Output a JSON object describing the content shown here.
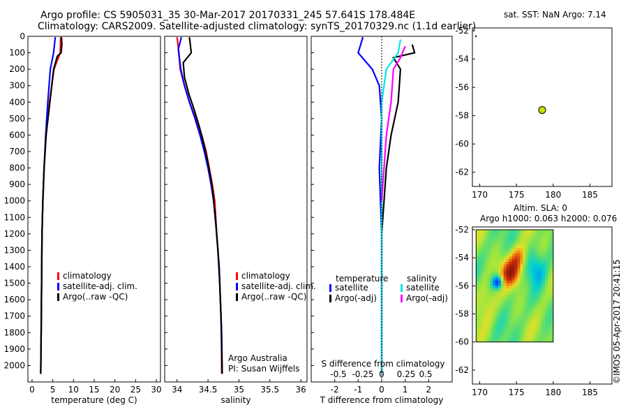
{
  "title_line1": "Argo profile: CS 5905031_35 30-Mar-2017 20170331_245 57.641S 178.484E",
  "title_line2": "Climatology: CARS2009. Satellite-adjusted climatology: synTS_20170329.nc (1.1d earlier)",
  "map_title_top": "sat. SST: NaN Argo: 7.14",
  "map_title_bottom_1": "Altim. SLA: 0",
  "map_title_bottom_2": "Argo h1000: 0.063 h2000: 0.076",
  "side_stamp": "©IMOS 05-Apr-2017 20:41:15",
  "colors": {
    "climatology": "#ff0000",
    "satellite": "#0000ff",
    "argo": "#000000",
    "sat_salinity": "#00e5e5",
    "argo_salinity": "#ff00ff",
    "float_marker": "#c8e000"
  },
  "chart_data": [
    {
      "type": "line",
      "xlabel": "temperature (deg C)",
      "ylabel": "",
      "xlim": [
        -1,
        31
      ],
      "ylim": [
        2100,
        0
      ],
      "xticks": [
        0,
        5,
        10,
        15,
        20,
        25,
        30
      ],
      "yticks": [
        0,
        100,
        200,
        300,
        400,
        500,
        600,
        700,
        800,
        900,
        1000,
        1100,
        1200,
        1300,
        1400,
        1500,
        1600,
        1700,
        1800,
        1900,
        2000
      ],
      "legend": [
        "climatology",
        "satellite-adj. clim.",
        "Argo(..raw -QC)"
      ],
      "series": [
        {
          "name": "climatology",
          "color": "#ff0000",
          "points": [
            [
              6.9,
              5
            ],
            [
              6.8,
              100
            ],
            [
              5.3,
              200
            ],
            [
              4.2,
              400
            ],
            [
              3.4,
              600
            ],
            [
              2.9,
              800
            ],
            [
              2.6,
              1000
            ],
            [
              2.4,
              1200
            ],
            [
              2.3,
              1500
            ],
            [
              2.2,
              1800
            ],
            [
              2.1,
              2050
            ]
          ]
        },
        {
          "name": "satellite-adj. clim.",
          "color": "#0000ff",
          "points": [
            [
              5.6,
              5
            ],
            [
              5.2,
              100
            ],
            [
              4.4,
              200
            ],
            [
              3.8,
              400
            ],
            [
              3.3,
              600
            ],
            [
              2.9,
              800
            ],
            [
              2.6,
              1000
            ],
            [
              2.4,
              1200
            ],
            [
              2.3,
              1500
            ],
            [
              2.2,
              1800
            ],
            [
              2.1,
              2050
            ]
          ]
        },
        {
          "name": "Argo(..raw -QC)",
          "color": "#000000",
          "points": [
            [
              7.1,
              5
            ],
            [
              7.2,
              50
            ],
            [
              7.0,
              100
            ],
            [
              6.1,
              120
            ],
            [
              5.2,
              200
            ],
            [
              4.3,
              400
            ],
            [
              3.4,
              600
            ],
            [
              2.9,
              800
            ],
            [
              2.6,
              1000
            ],
            [
              2.4,
              1200
            ],
            [
              2.3,
              1500
            ],
            [
              2.2,
              1800
            ],
            [
              2.1,
              2050
            ]
          ]
        }
      ]
    },
    {
      "type": "line",
      "xlabel": "salinity",
      "xlim": [
        33.8,
        36.1
      ],
      "ylim": [
        2100,
        0
      ],
      "xticks": [
        34,
        34.5,
        35,
        35.5,
        36
      ],
      "legend": [
        "climatology",
        "satellite-adj. clim.",
        "Argo(..raw -QC)"
      ],
      "annotation_1": "Argo Australia",
      "annotation_2": "PI: Susan Wijffels",
      "series": [
        {
          "name": "climatology",
          "color": "#ff0000",
          "points": [
            [
              34.0,
              5
            ],
            [
              34.03,
              100
            ],
            [
              34.05,
              200
            ],
            [
              34.12,
              300
            ],
            [
              34.2,
              400
            ],
            [
              34.3,
              500
            ],
            [
              34.4,
              600
            ],
            [
              34.47,
              700
            ],
            [
              34.52,
              800
            ],
            [
              34.57,
              900
            ],
            [
              34.61,
              1000
            ],
            [
              34.64,
              1200
            ],
            [
              34.68,
              1400
            ],
            [
              34.7,
              1600
            ],
            [
              34.72,
              1800
            ],
            [
              34.72,
              2050
            ]
          ]
        },
        {
          "name": "satellite-adj. clim.",
          "color": "#0000ff",
          "points": [
            [
              34.07,
              5
            ],
            [
              34.02,
              80
            ],
            [
              34.06,
              200
            ],
            [
              34.12,
              300
            ],
            [
              34.2,
              400
            ],
            [
              34.29,
              500
            ],
            [
              34.37,
              600
            ],
            [
              34.44,
              700
            ],
            [
              34.5,
              800
            ],
            [
              34.55,
              900
            ],
            [
              34.59,
              1000
            ],
            [
              34.64,
              1200
            ],
            [
              34.68,
              1400
            ],
            [
              34.7,
              1600
            ],
            [
              34.72,
              1800
            ],
            [
              34.73,
              2050
            ]
          ]
        },
        {
          "name": "Argo(..raw -QC)",
          "color": "#000000",
          "points": [
            [
              34.2,
              5
            ],
            [
              34.23,
              100
            ],
            [
              34.1,
              160
            ],
            [
              34.12,
              250
            ],
            [
              34.19,
              350
            ],
            [
              34.28,
              450
            ],
            [
              34.36,
              550
            ],
            [
              34.43,
              650
            ],
            [
              34.49,
              750
            ],
            [
              34.54,
              850
            ],
            [
              34.58,
              950
            ],
            [
              34.62,
              1100
            ],
            [
              34.66,
              1300
            ],
            [
              34.69,
              1500
            ],
            [
              34.71,
              1700
            ],
            [
              34.72,
              1900
            ],
            [
              34.73,
              2050
            ]
          ]
        }
      ]
    },
    {
      "type": "line",
      "xlabel": "T difference from climatology",
      "xlabel_top": "S difference from climatology",
      "xlim": [
        -3,
        3
      ],
      "ylim": [
        2100,
        0
      ],
      "xticks": [
        -2,
        -1,
        0,
        1,
        2
      ],
      "top_ticks": [
        "-0.5",
        "-0.25",
        "0",
        "0.25",
        "0.5"
      ],
      "legend_headers": [
        "temperature",
        "salinity"
      ],
      "legend": [
        "satellite",
        "Argo(-adj)",
        "satellite",
        "Argo(-adj)"
      ],
      "series": [
        {
          "name": "temperature satellite",
          "color": "#0000ff",
          "points": [
            [
              -0.8,
              5
            ],
            [
              -1.0,
              100
            ],
            [
              -0.4,
              200
            ],
            [
              -0.1,
              300
            ],
            [
              0,
              500
            ],
            [
              -0.1,
              800
            ],
            [
              0,
              1200
            ],
            [
              0,
              2050
            ]
          ]
        },
        {
          "name": "temperature Argo(-adj)",
          "color": "#000000",
          "points": [
            [
              1.3,
              50
            ],
            [
              1.4,
              100
            ],
            [
              0.5,
              130
            ],
            [
              0.8,
              200
            ],
            [
              0.7,
              400
            ],
            [
              0.4,
              600
            ],
            [
              0.2,
              800
            ],
            [
              0,
              1200
            ],
            [
              0,
              2050
            ]
          ]
        },
        {
          "name": "salinity satellite",
          "color": "#00e5e5",
          "points": [
            [
              0.8,
              20
            ],
            [
              0.7,
              100
            ],
            [
              0.2,
              200
            ],
            [
              0,
              400
            ],
            [
              0,
              1100
            ],
            [
              0,
              2050
            ]
          ]
        },
        {
          "name": "salinity Argo(-adj)",
          "color": "#ff00ff",
          "points": [
            [
              1.0,
              60
            ],
            [
              0.8,
              130
            ],
            [
              0.5,
              200
            ],
            [
              0.4,
              400
            ],
            [
              0.2,
              600
            ],
            [
              0,
              1000
            ]
          ]
        }
      ]
    },
    {
      "type": "scatter",
      "xlim": [
        169,
        188
      ],
      "ylim": [
        -63,
        -51.8
      ],
      "xticks": [
        170,
        175,
        180,
        185
      ],
      "yticks": [
        -52,
        -54,
        -56,
        -58,
        -60,
        -62
      ],
      "series": [
        {
          "name": "Argo",
          "points": [
            [
              178.5,
              -57.6
            ]
          ]
        }
      ]
    },
    {
      "type": "heatmap",
      "xlim": [
        169,
        188
      ],
      "ylim": [
        -63,
        -51.8
      ],
      "xticks": [
        170,
        175,
        180,
        185
      ],
      "yticks": [
        -52,
        -54,
        -56,
        -58,
        -60,
        -62
      ],
      "extent": {
        "lon": [
          169.5,
          180
        ],
        "lat": [
          -60,
          -52
        ]
      }
    }
  ]
}
